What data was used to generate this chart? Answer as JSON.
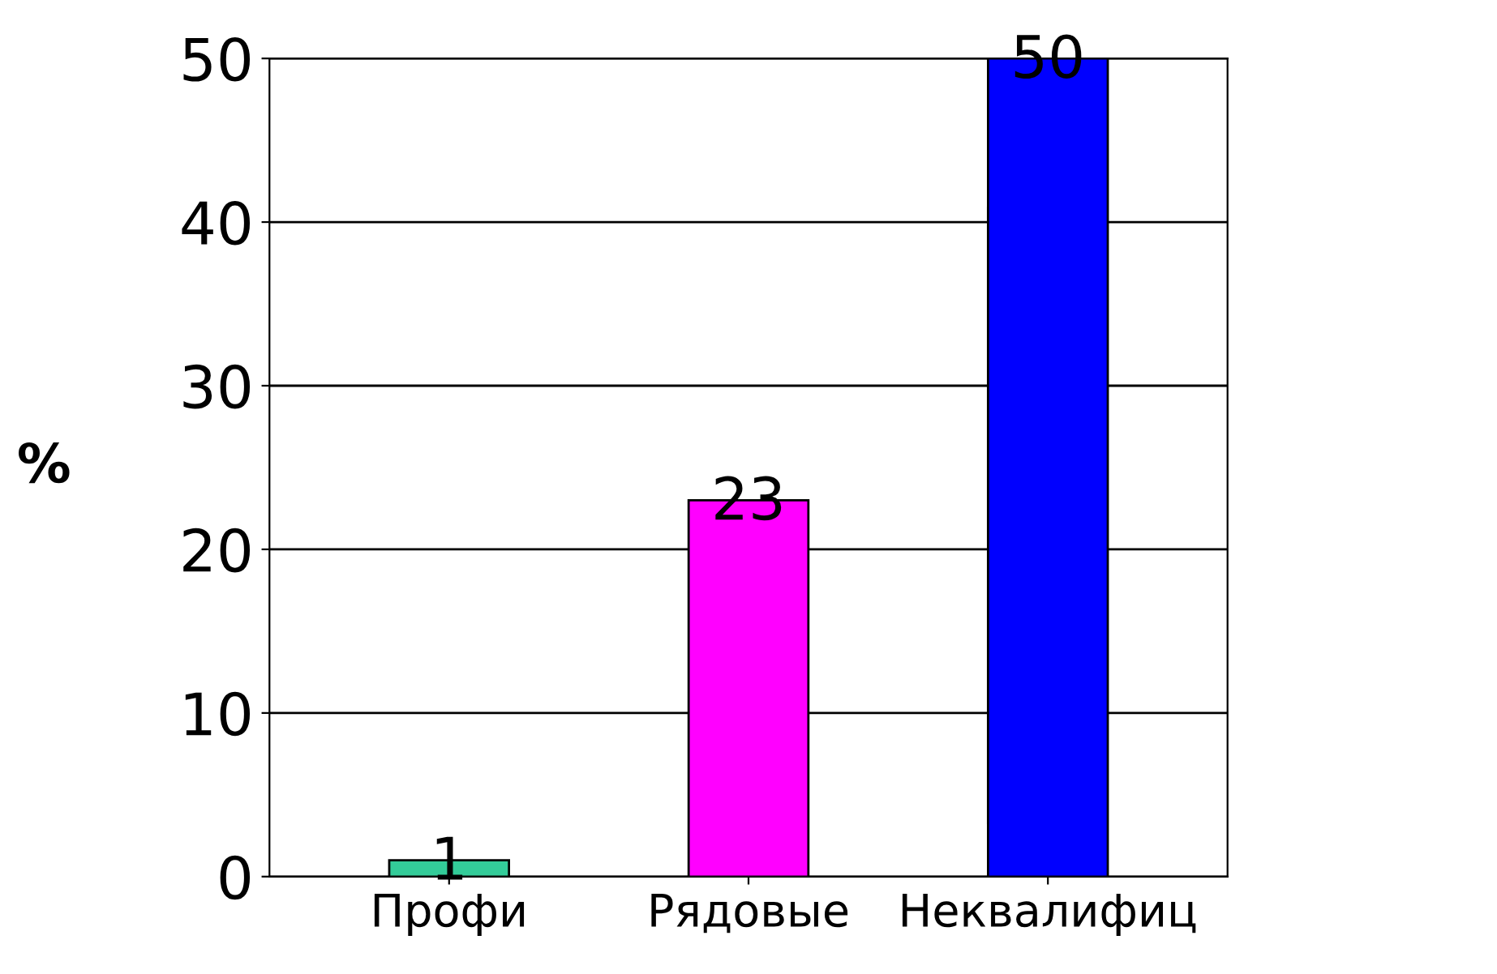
{
  "chart_data": {
    "type": "bar",
    "ylabel": "%",
    "categories": [
      "Профи",
      "Рядовые",
      "Неквалифиц"
    ],
    "series": [
      {
        "colors": [
          "#33cc99",
          "#ff00ff",
          "#0000ff"
        ],
        "values": [
          1,
          23,
          50
        ]
      }
    ],
    "ylim": [
      0,
      50
    ],
    "yticks": [
      0,
      10,
      20,
      30,
      40,
      50
    ],
    "grid": "y",
    "data_labels": true,
    "legend": false
  }
}
